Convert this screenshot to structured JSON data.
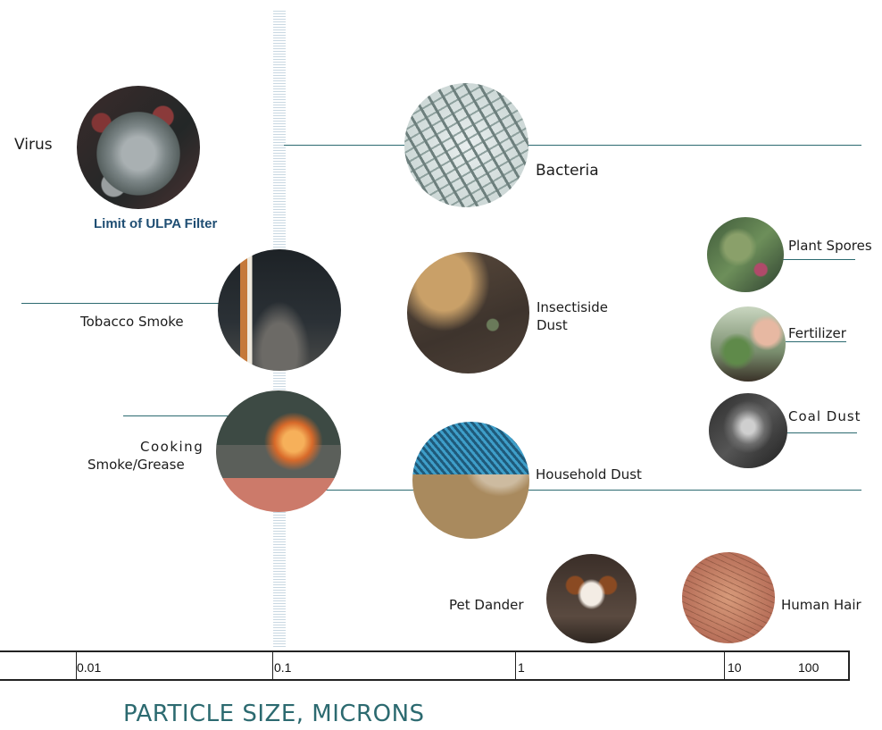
{
  "particles": {
    "virus": {
      "label": "Virus"
    },
    "bacteria": {
      "label": "Bacteria"
    },
    "tobacco": {
      "label": "Tobacco Smoke"
    },
    "insecticide": {
      "line1": "Insectiside",
      "line2": "Dust"
    },
    "plant_spores": {
      "label": "Plant Spores"
    },
    "fertilizer": {
      "label": "Fertilizer"
    },
    "coal": {
      "label": "Coal Dust"
    },
    "cooking": {
      "line1": "Cooking",
      "line2": "Smoke/Grease"
    },
    "household": {
      "label": "Household Dust"
    },
    "pet": {
      "label": "Pet Dander"
    },
    "hair": {
      "label": "Human Hair"
    }
  },
  "ulpa_label": "Limit of ULPA Filter",
  "axis": {
    "ticks": [
      "0.01",
      "0.1",
      "1",
      "10",
      "100"
    ],
    "title": "PARTICLE SIZE, MICRONS"
  },
  "colors": {
    "accent": "#2c6a70",
    "ulpa": "#1f4e73"
  }
}
